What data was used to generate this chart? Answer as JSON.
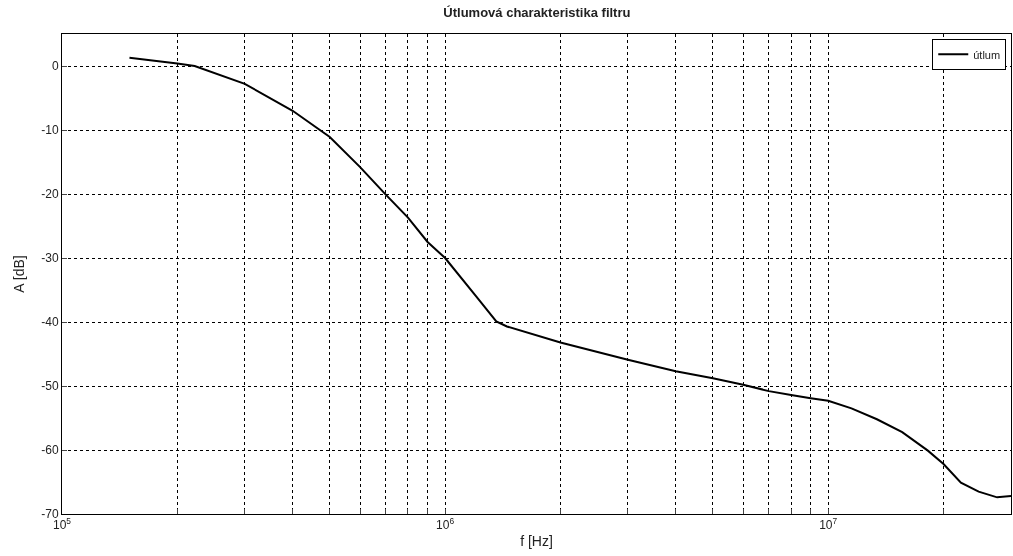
{
  "chart_data": {
    "type": "line",
    "title": "Útlumová charakteristika filtru",
    "xlabel": "f [Hz]",
    "ylabel": "A [dB]",
    "log": "x",
    "grid": true,
    "legend": "top right",
    "line_style": "solid",
    "marker": "none",
    "xlim": [
      100000,
      30000000
    ],
    "ylim": [
      -70,
      5
    ],
    "xticks": [
      {
        "value": 100000,
        "label": "10$^{5}$"
      },
      {
        "value": 200000,
        "label": null
      },
      {
        "value": 300000,
        "label": null
      },
      {
        "value": 400000,
        "label": null
      },
      {
        "value": 500000,
        "label": null
      },
      {
        "value": 600000,
        "label": null
      },
      {
        "value": 700000,
        "label": null
      },
      {
        "value": 800000,
        "label": null
      },
      {
        "value": 900000,
        "label": null
      },
      {
        "value": 1000000,
        "label": "10$^{6}$"
      },
      {
        "value": 2000000,
        "label": null
      },
      {
        "value": 3000000,
        "label": null
      },
      {
        "value": 4000000,
        "label": null
      },
      {
        "value": 5000000,
        "label": null
      },
      {
        "value": 6000000,
        "label": null
      },
      {
        "value": 7000000,
        "label": null
      },
      {
        "value": 8000000,
        "label": null
      },
      {
        "value": 9000000,
        "label": null
      },
      {
        "value": 10000000,
        "label": "10$^{7}$"
      },
      {
        "value": 20000000,
        "label": null
      }
    ],
    "yticks": [
      -70,
      -60,
      -50,
      -40,
      -30,
      -20,
      -10,
      0
    ],
    "series": [
      {
        "name": "útlum",
        "color": "#000000",
        "x": [
          150000,
          200000,
          222000,
          300000,
          400000,
          500000,
          600000,
          700000,
          800000,
          900000,
          1000000,
          1220000,
          1360000,
          1450000,
          2000000,
          3000000,
          4000000,
          5000000,
          6000000,
          7000000,
          8000000,
          9000000,
          10000000,
          11500000,
          13400000,
          15600000,
          18200000,
          20000000,
          22200000,
          24700000,
          27600000,
          30000000
        ],
        "values": [
          1.3,
          0.4,
          0,
          -2.8,
          -7.0,
          -11.1,
          -15.8,
          -20.1,
          -23.7,
          -27.5,
          -30,
          -36.4,
          -39.9,
          -40.7,
          -43.2,
          -45.9,
          -47.7,
          -48.8,
          -49.8,
          -50.8,
          -51.4,
          -51.9,
          -52.3,
          -53.5,
          -55.2,
          -57.2,
          -60.1,
          -62.2,
          -65.1,
          -66.5,
          -67.4,
          -67.2
        ]
      }
    ]
  }
}
